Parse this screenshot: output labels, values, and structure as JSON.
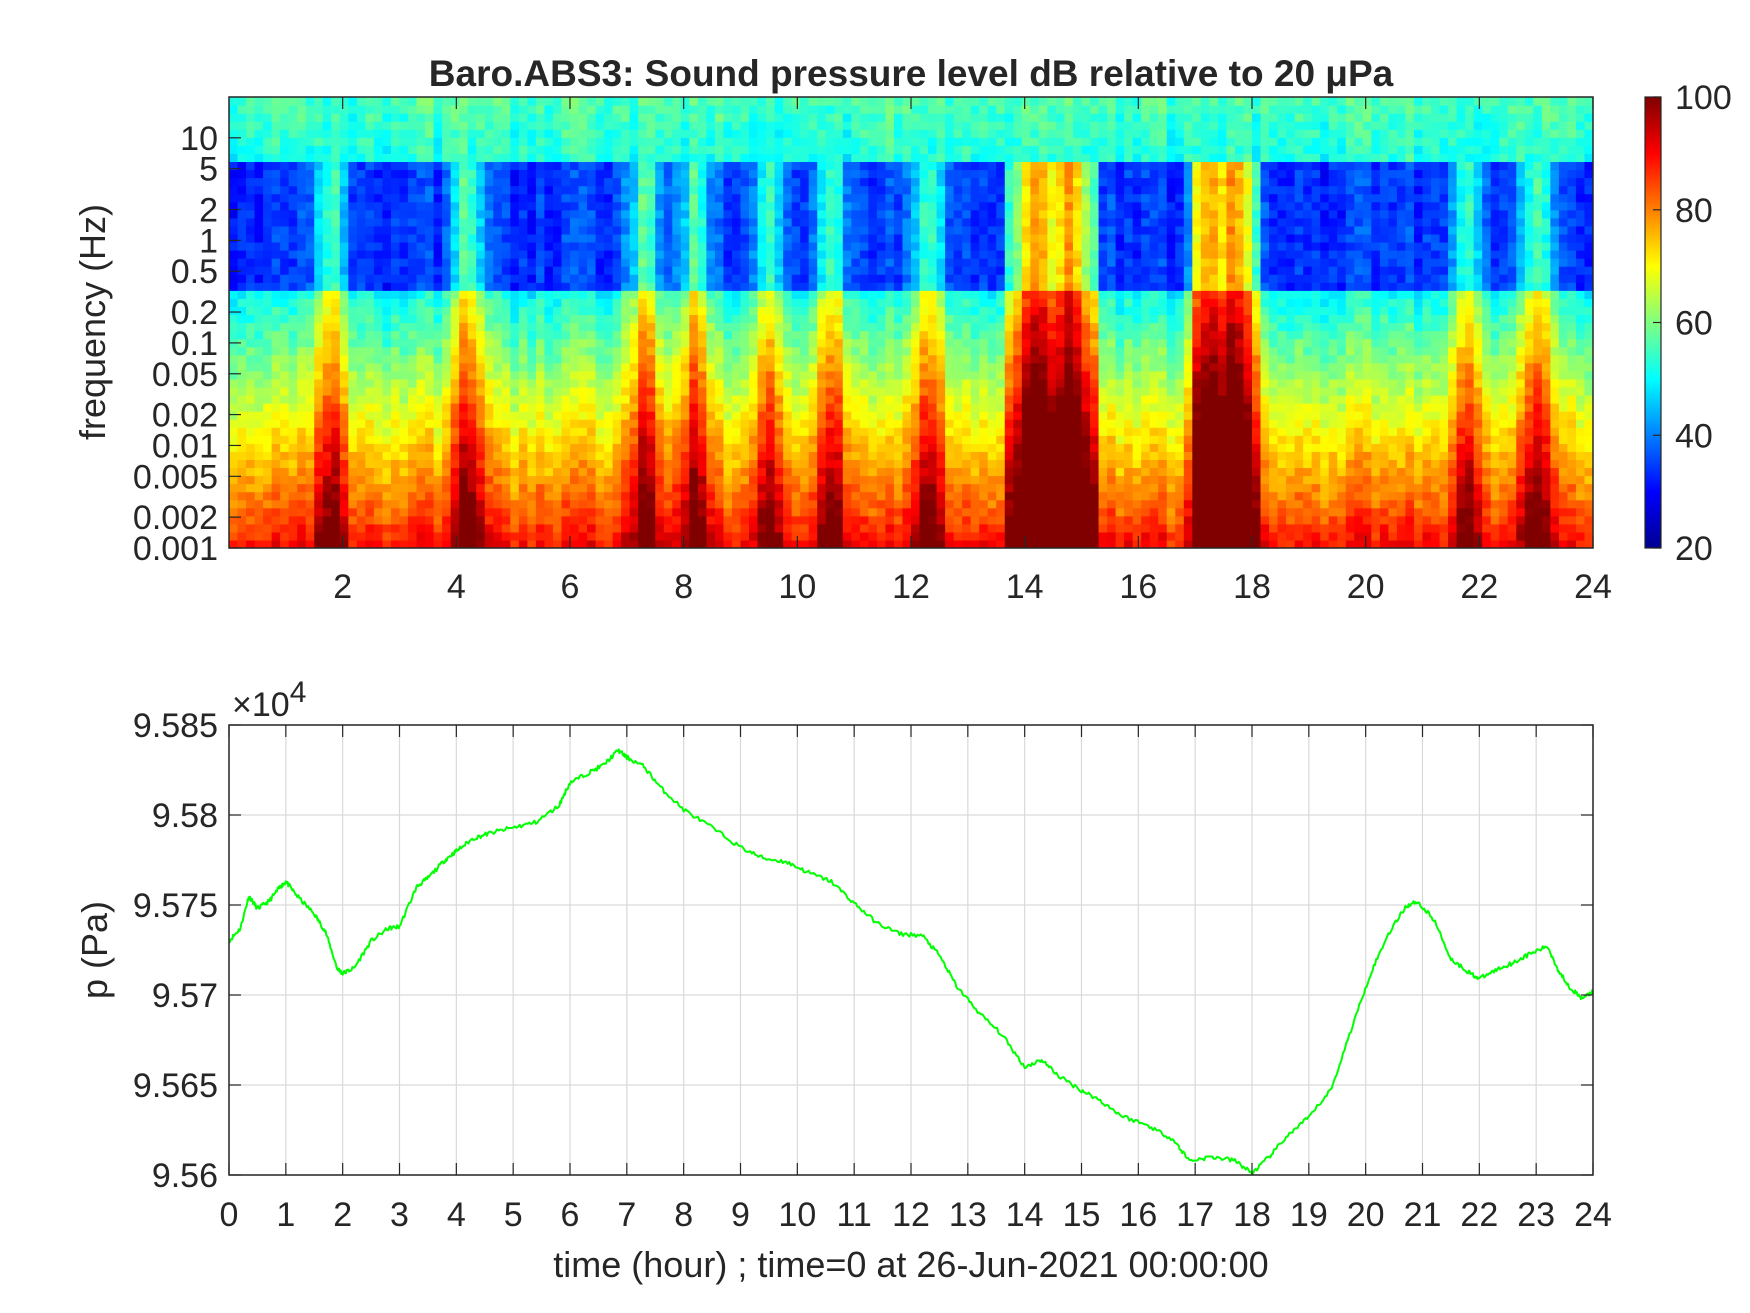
{
  "chart_data": [
    {
      "type": "heatmap",
      "title": "Baro.ABS3: Sound pressure level dB relative to 20 μPa",
      "ylabel": "frequency (Hz)",
      "xlabel": "",
      "y_scale": "log",
      "x_range": [
        0,
        24
      ],
      "y_range": [
        0.001,
        25
      ],
      "x_ticks": [
        2,
        4,
        6,
        8,
        10,
        12,
        14,
        16,
        18,
        20,
        22,
        24
      ],
      "x_tick_labels": [
        "2",
        "4",
        "6",
        "8",
        "10",
        "12",
        "14",
        "16",
        "18",
        "20",
        "22",
        "24"
      ],
      "y_ticks": [
        0.001,
        0.002,
        0.005,
        0.01,
        0.02,
        0.05,
        0.1,
        0.2,
        0.5,
        1,
        2,
        5,
        10
      ],
      "y_tick_labels": [
        "0.001",
        "0.002",
        "0.005",
        "0.01",
        "0.02",
        "0.05",
        "0.1",
        "0.2",
        "0.5",
        "1",
        "2",
        "5",
        "10"
      ],
      "colormap": "jet",
      "colorbar": {
        "range": [
          20,
          100
        ],
        "ticks": [
          20,
          40,
          60,
          80,
          100
        ],
        "tick_labels": [
          "20",
          "40",
          "60",
          "80",
          "100"
        ]
      },
      "activity_peaks_hour": [
        1.8,
        4.2,
        7.3,
        8.2,
        9.5,
        10.6,
        12.3,
        14.2,
        14.8,
        17.2,
        17.7,
        21.8,
        23.0
      ],
      "grid": false
    },
    {
      "type": "line",
      "ylabel": "p (Pa)",
      "xlabel": "time (hour) ; time=0 at 26-Jun-2021 00:00:00",
      "xlim": [
        0,
        24
      ],
      "ylim": [
        95600,
        95850
      ],
      "y_exponent_label": "×10",
      "y_exponent": "4",
      "x_ticks": [
        "0",
        "1",
        "2",
        "3",
        "4",
        "5",
        "6",
        "7",
        "8",
        "9",
        "10",
        "11",
        "12",
        "13",
        "14",
        "15",
        "16",
        "17",
        "18",
        "19",
        "20",
        "21",
        "22",
        "23",
        "24"
      ],
      "y_tick_labels": [
        "9.56",
        "9.565",
        "9.57",
        "9.575",
        "9.58",
        "9.585"
      ],
      "y_ticks": [
        95600,
        95650,
        95700,
        95750,
        95800,
        95850
      ],
      "grid": true,
      "color": "#00ff00",
      "series": [
        {
          "x": [
            0,
            0.2,
            0.35,
            0.5,
            0.7,
            0.9,
            1.0,
            1.2,
            1.5,
            1.7,
            1.9,
            2.0,
            2.2,
            2.5,
            2.8,
            3.0,
            3.3,
            3.5,
            3.8,
            4.0,
            4.3,
            4.6,
            5.0,
            5.4,
            5.8,
            6.0,
            6.3,
            6.6,
            6.85,
            7.0,
            7.3,
            7.6,
            8.0,
            8.5,
            9.0,
            9.4,
            9.8,
            10.2,
            10.6,
            11.0,
            11.4,
            11.8,
            12.2,
            12.5,
            12.8,
            13.2,
            13.6,
            14.0,
            14.3,
            14.6,
            15.0,
            15.3,
            15.7,
            16.2,
            16.6,
            16.9,
            17.3,
            17.7,
            18.0,
            18.3,
            18.6,
            19.0,
            19.4,
            19.8,
            20.1,
            20.4,
            20.7,
            20.9,
            21.2,
            21.5,
            21.8,
            22.0,
            22.3,
            22.6,
            22.9,
            23.2,
            23.4,
            23.6,
            23.8,
            24.0
          ],
          "values": [
            95730,
            95737,
            95755,
            95748,
            95752,
            95760,
            95763,
            95755,
            95745,
            95735,
            95715,
            95712,
            95715,
            95730,
            95737,
            95738,
            95760,
            95765,
            95775,
            95780,
            95787,
            95790,
            95793,
            95796,
            95805,
            95818,
            95823,
            95828,
            95836,
            95832,
            95827,
            95815,
            95803,
            95793,
            95782,
            95776,
            95774,
            95768,
            95763,
            95751,
            95740,
            95734,
            95733,
            95722,
            95705,
            95690,
            95678,
            95660,
            95664,
            95655,
            95647,
            95642,
            95633,
            95627,
            95620,
            95608,
            95610,
            95608,
            95601,
            95610,
            95621,
            95632,
            95648,
            95686,
            95713,
            95734,
            95749,
            95752,
            95742,
            95720,
            95713,
            95709,
            95714,
            95718,
            95723,
            95727,
            95713,
            95704,
            95698,
            95702
          ]
        }
      ]
    }
  ]
}
